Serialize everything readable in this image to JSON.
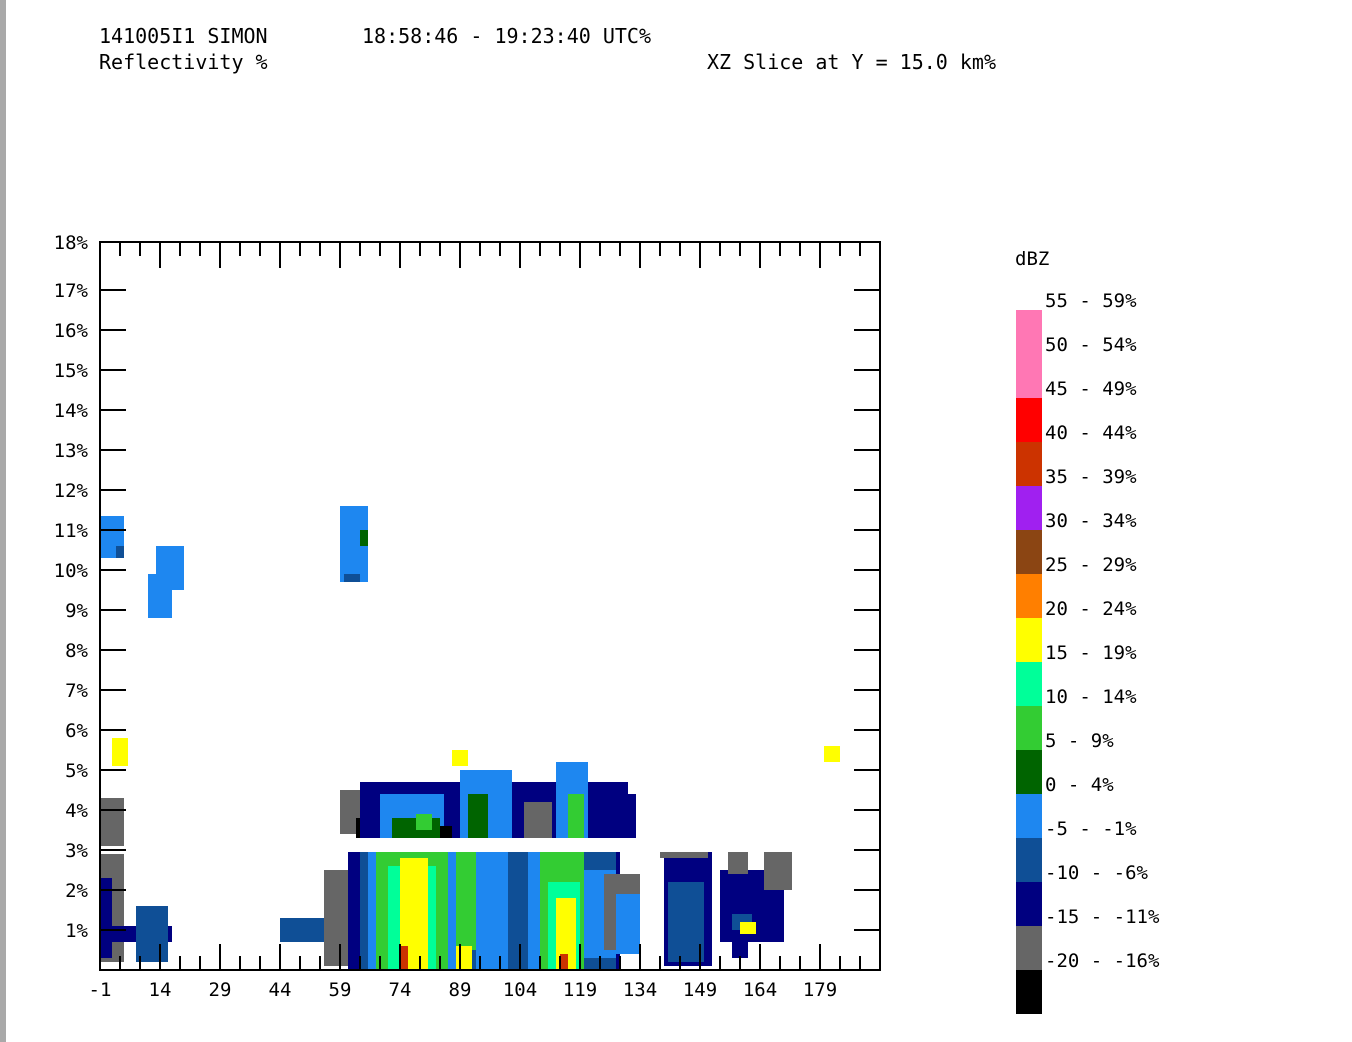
{
  "header": {
    "case_id": "141005I1 SIMON",
    "time_range": "18:58:46 - 19:23:40 UTC%",
    "field": "Reflectivity %",
    "slice": "XZ Slice at Y = 15.0 km%"
  },
  "legend": {
    "unit": "dBZ",
    "bins": [
      {
        "label": "55 - 59%",
        "color": "#ff77b4"
      },
      {
        "label": "50 - 54%",
        "color": "#ff77b4"
      },
      {
        "label": "45 - 49%",
        "color": "#ff0000"
      },
      {
        "label": "40 - 44%",
        "color": "#cc3300"
      },
      {
        "label": "35 - 39%",
        "color": "#a020f0"
      },
      {
        "label": "30 - 34%",
        "color": "#8b4513"
      },
      {
        "label": "25 - 29%",
        "color": "#ff7f00"
      },
      {
        "label": "20 - 24%",
        "color": "#ffff00"
      },
      {
        "label": "15 - 19%",
        "color": "#00ff99"
      },
      {
        "label": "10 - 14%",
        "color": "#33cc33"
      },
      {
        "label": "5 - 9%",
        "color": "#006400"
      },
      {
        "label": "0 - 4%",
        "color": "#1e87f0"
      },
      {
        "label": "-5 - -1%",
        "color": "#0f4f96"
      },
      {
        "label": "-10 - -6%",
        "color": "#000080"
      },
      {
        "label": "-15 - -11%",
        "color": "#666666"
      },
      {
        "label": "-20 - -16%",
        "color": "#000000"
      }
    ]
  },
  "chart_data": {
    "type": "heatmap",
    "title": "Reflectivity %",
    "xlim": [
      -1,
      194
    ],
    "ylim": [
      0,
      18
    ],
    "x_ticks": [
      -1,
      14,
      29,
      44,
      59,
      74,
      89,
      104,
      119,
      134,
      149,
      164,
      179
    ],
    "x_tick_labels": [
      "-1",
      "14",
      "29",
      "44",
      "59",
      "74",
      "89",
      "104",
      "119",
      "134",
      "149",
      "164",
      "179"
    ],
    "y_ticks": [
      1,
      2,
      3,
      4,
      5,
      6,
      7,
      8,
      9,
      10,
      11,
      12,
      13,
      14,
      15,
      16,
      17,
      18
    ],
    "y_tick_labels": [
      "1%",
      "2%",
      "3%",
      "4%",
      "5%",
      "6%",
      "7%",
      "8%",
      "9%",
      "10%",
      "11%",
      "12%",
      "13%",
      "14%",
      "15%",
      "16%",
      "17%",
      "18%"
    ],
    "xlabel": "",
    "ylabel": "",
    "cells": [
      {
        "x0": -1,
        "x1": 5,
        "y0": 10.3,
        "y1": 11.35,
        "bin": "0 - 4%"
      },
      {
        "x0": 3,
        "x1": 5,
        "y0": 10.3,
        "y1": 10.6,
        "bin": "-5 - -1%"
      },
      {
        "x0": 11,
        "x1": 17,
        "y0": 8.8,
        "y1": 9.9,
        "bin": "0 - 4%"
      },
      {
        "x0": 13,
        "x1": 20,
        "y0": 9.5,
        "y1": 10.6,
        "bin": "0 - 4%"
      },
      {
        "x0": 59,
        "x1": 66,
        "y0": 9.7,
        "y1": 11.6,
        "bin": "0 - 4%"
      },
      {
        "x0": 60,
        "x1": 64,
        "y0": 9.7,
        "y1": 9.9,
        "bin": "-5 - -1%"
      },
      {
        "x0": 64,
        "x1": 66,
        "y0": 10.6,
        "y1": 11.0,
        "bin": "5 - 9%"
      },
      {
        "x0": 2,
        "x1": 6,
        "y0": 5.1,
        "y1": 5.8,
        "bin": "20 - 24%"
      },
      {
        "x0": 87,
        "x1": 91,
        "y0": 5.1,
        "y1": 5.5,
        "bin": "20 - 24%"
      },
      {
        "x0": 180,
        "x1": 184,
        "y0": 5.2,
        "y1": 5.6,
        "bin": "20 - 24%"
      },
      {
        "x0": -1,
        "x1": 5,
        "y0": 3.1,
        "y1": 4.3,
        "bin": "-15 - -11%"
      },
      {
        "x0": -1,
        "x1": 5,
        "y0": 0.2,
        "y1": 2.9,
        "bin": "-15 - -11%"
      },
      {
        "x0": -1,
        "x1": 2,
        "y0": 0.3,
        "y1": 2.3,
        "bin": "-10 - -6%"
      },
      {
        "x0": -1,
        "x1": 17,
        "y0": 0.7,
        "y1": 1.1,
        "bin": "-10 - -6%"
      },
      {
        "x0": 8,
        "x1": 16,
        "y0": 0.2,
        "y1": 1.6,
        "bin": "-5 - -1%"
      },
      {
        "x0": 44,
        "x1": 60,
        "y0": 0.7,
        "y1": 1.3,
        "bin": "-5 - -1%"
      },
      {
        "x0": 55,
        "x1": 63,
        "y0": 0.1,
        "y1": 2.5,
        "bin": "-15 - -11%"
      },
      {
        "x0": 61,
        "x1": 129,
        "y0": 0.0,
        "y1": 2.95,
        "bin": "-10 - -6%"
      },
      {
        "x0": 64,
        "x1": 128,
        "y0": 0.0,
        "y1": 2.95,
        "bin": "-5 - -1%"
      },
      {
        "x0": 66,
        "x1": 73,
        "y0": 0.0,
        "y1": 2.95,
        "bin": "0 - 4%"
      },
      {
        "x0": 68,
        "x1": 86,
        "y0": 0.0,
        "y1": 2.95,
        "bin": "10 - 14%"
      },
      {
        "x0": 71,
        "x1": 83,
        "y0": 0.0,
        "y1": 2.6,
        "bin": "15 - 19%"
      },
      {
        "x0": 74,
        "x1": 81,
        "y0": 0.0,
        "y1": 2.8,
        "bin": "20 - 24%"
      },
      {
        "x0": 74,
        "x1": 76,
        "y0": 0.0,
        "y1": 0.6,
        "bin": "40 - 44%"
      },
      {
        "x0": 86,
        "x1": 92,
        "y0": 0.0,
        "y1": 2.95,
        "bin": "0 - 4%"
      },
      {
        "x0": 88,
        "x1": 93,
        "y0": 0.5,
        "y1": 2.95,
        "bin": "10 - 14%"
      },
      {
        "x0": 88,
        "x1": 92,
        "y0": 0.0,
        "y1": 0.6,
        "bin": "20 - 24%"
      },
      {
        "x0": 93,
        "x1": 101,
        "y0": 0.0,
        "y1": 2.95,
        "bin": "0 - 4%"
      },
      {
        "x0": 106,
        "x1": 118,
        "y0": 0.0,
        "y1": 2.95,
        "bin": "0 - 4%"
      },
      {
        "x0": 109,
        "x1": 120,
        "y0": 0.0,
        "y1": 2.95,
        "bin": "10 - 14%"
      },
      {
        "x0": 111,
        "x1": 119,
        "y0": 0.0,
        "y1": 2.2,
        "bin": "15 - 19%"
      },
      {
        "x0": 113,
        "x1": 118,
        "y0": 0.0,
        "y1": 1.8,
        "bin": "20 - 24%"
      },
      {
        "x0": 114,
        "x1": 116,
        "y0": 0.0,
        "y1": 0.4,
        "bin": "40 - 44%"
      },
      {
        "x0": 120,
        "x1": 128,
        "y0": 0.3,
        "y1": 2.5,
        "bin": "0 - 4%"
      },
      {
        "x0": 125,
        "x1": 134,
        "y0": 0.5,
        "y1": 2.4,
        "bin": "-15 - -11%"
      },
      {
        "x0": 128,
        "x1": 134,
        "y0": 0.4,
        "y1": 1.9,
        "bin": "0 - 4%"
      },
      {
        "x0": 140,
        "x1": 152,
        "y0": 0.1,
        "y1": 2.95,
        "bin": "-10 - -6%"
      },
      {
        "x0": 139,
        "x1": 151,
        "y0": 2.8,
        "y1": 2.95,
        "bin": "-15 - -11%"
      },
      {
        "x0": 141,
        "x1": 150,
        "y0": 0.2,
        "y1": 2.2,
        "bin": "-5 - -1%"
      },
      {
        "x0": 154,
        "x1": 170,
        "y0": 0.7,
        "y1": 2.5,
        "bin": "-10 - -6%"
      },
      {
        "x0": 156,
        "x1": 161,
        "y0": 2.4,
        "y1": 2.95,
        "bin": "-15 - -11%"
      },
      {
        "x0": 165,
        "x1": 172,
        "y0": 2.0,
        "y1": 2.95,
        "bin": "-15 - -11%"
      },
      {
        "x0": 157,
        "x1": 162,
        "y0": 1.0,
        "y1": 1.4,
        "bin": "-5 - -1%"
      },
      {
        "x0": 159,
        "x1": 163,
        "y0": 0.9,
        "y1": 1.2,
        "bin": "20 - 24%"
      },
      {
        "x0": 157,
        "x1": 161,
        "y0": 0.3,
        "y1": 0.8,
        "bin": "-10 - -6%"
      },
      {
        "x0": 59,
        "x1": 64,
        "y0": 3.4,
        "y1": 4.5,
        "bin": "-15 - -11%"
      },
      {
        "x0": 63,
        "x1": 70,
        "y0": 3.3,
        "y1": 3.8,
        "bin": "-20 - -16%"
      },
      {
        "x0": 64,
        "x1": 131,
        "y0": 3.3,
        "y1": 4.7,
        "bin": "-10 - -6%"
      },
      {
        "x0": 69,
        "x1": 85,
        "y0": 3.3,
        "y1": 4.4,
        "bin": "0 - 4%"
      },
      {
        "x0": 72,
        "x1": 84,
        "y0": 3.3,
        "y1": 3.8,
        "bin": "5 - 9%"
      },
      {
        "x0": 78,
        "x1": 82,
        "y0": 3.5,
        "y1": 3.9,
        "bin": "10 - 14%"
      },
      {
        "x0": 84,
        "x1": 87,
        "y0": 3.3,
        "y1": 3.6,
        "bin": "-20 - -16%"
      },
      {
        "x0": 89,
        "x1": 102,
        "y0": 3.3,
        "y1": 5.0,
        "bin": "0 - 4%"
      },
      {
        "x0": 91,
        "x1": 96,
        "y0": 3.3,
        "y1": 4.4,
        "bin": "5 - 9%"
      },
      {
        "x0": 105,
        "x1": 112,
        "y0": 3.3,
        "y1": 4.2,
        "bin": "-15 - -11%"
      },
      {
        "x0": 113,
        "x1": 121,
        "y0": 3.3,
        "y1": 5.2,
        "bin": "0 - 4%"
      },
      {
        "x0": 116,
        "x1": 120,
        "y0": 3.3,
        "y1": 4.4,
        "bin": "10 - 14%"
      },
      {
        "x0": 129,
        "x1": 133,
        "y0": 3.3,
        "y1": 4.4,
        "bin": "-10 - -6%"
      }
    ]
  }
}
